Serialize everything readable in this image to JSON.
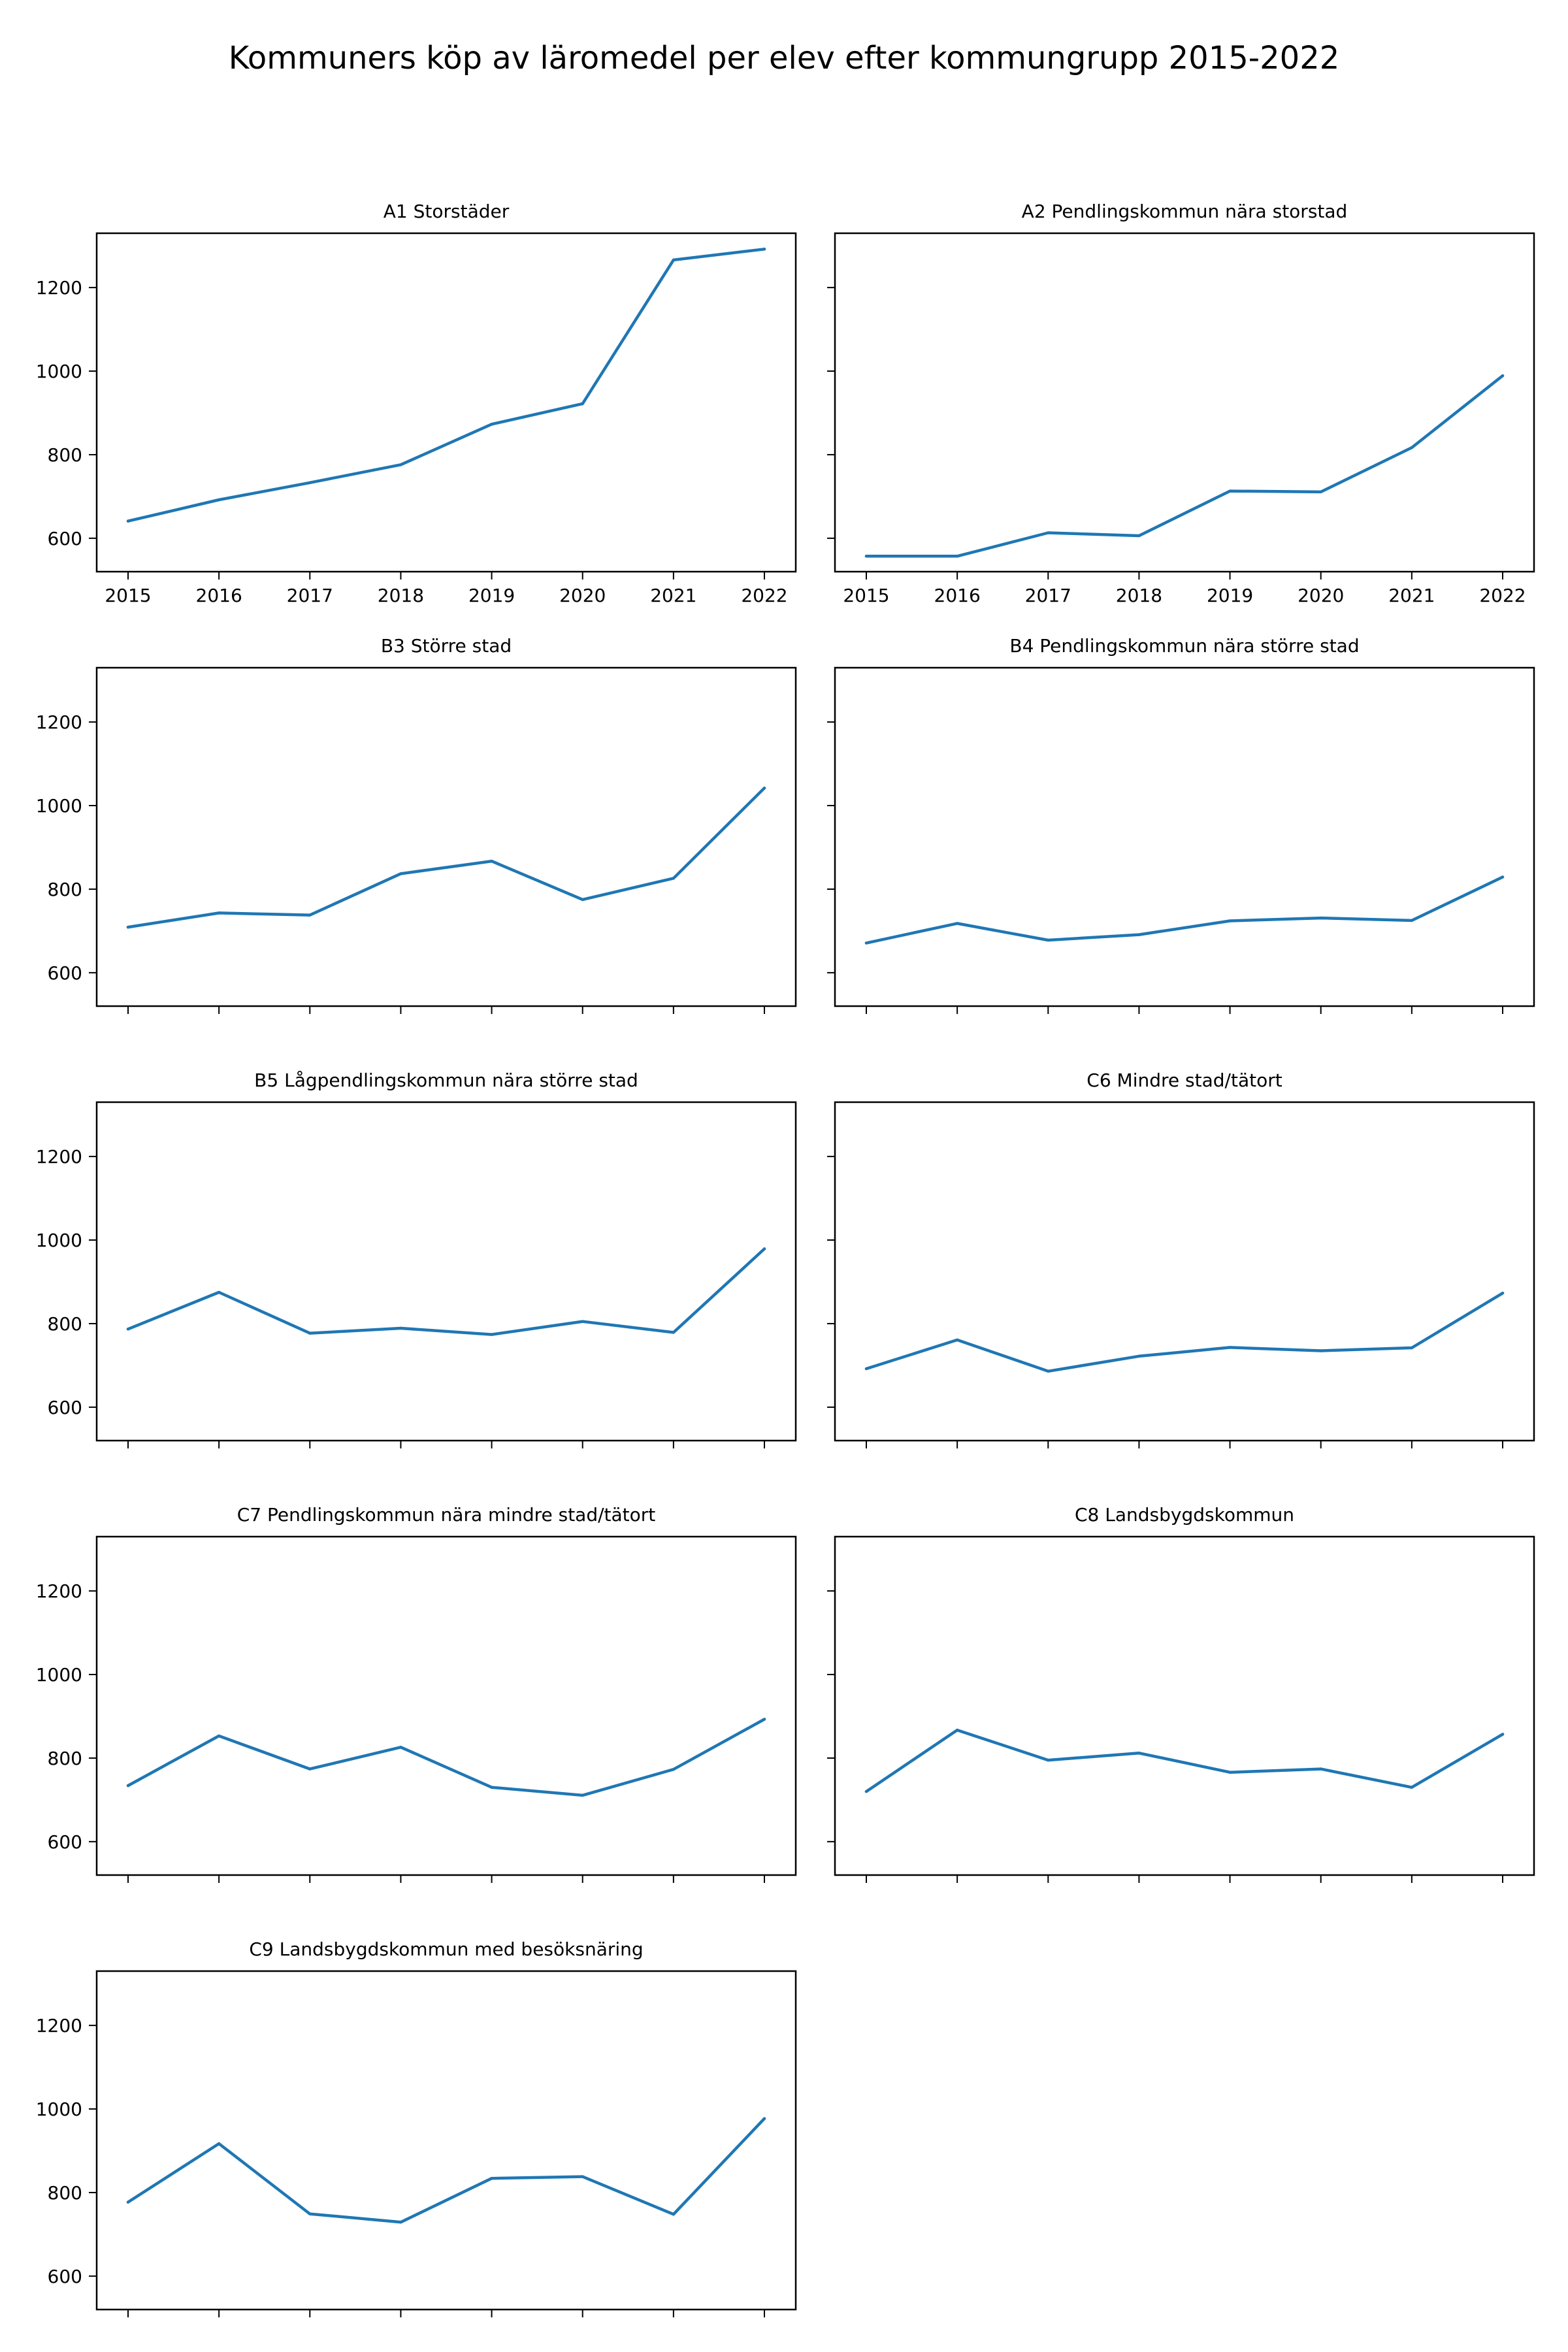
{
  "title": "Kommuners köp av läromedel per elev efter kommungrupp 2015-2022",
  "colors": {
    "line": "#1f77b4"
  },
  "chart_data": {
    "type": "line",
    "layout": "small-multiples",
    "x": [
      "2015",
      "2016",
      "2017",
      "2018",
      "2019",
      "2020",
      "2021",
      "2022"
    ],
    "ylim": [
      520,
      1330
    ],
    "yticks": [
      600,
      800,
      1000,
      1200
    ],
    "shared_y": true,
    "grid": false,
    "panels": [
      {
        "title": "A1 Storstäder",
        "values": [
          641,
          692,
          733,
          776,
          873,
          922,
          1266,
          1292
        ],
        "show_x_labels": true
      },
      {
        "title": "A2 Pendlingskommun nära storstad",
        "values": [
          557,
          557,
          613,
          606,
          713,
          711,
          817,
          989
        ],
        "show_x_labels": true
      },
      {
        "title": "B3 Större stad",
        "values": [
          709,
          743,
          738,
          837,
          867,
          775,
          826,
          1042
        ],
        "show_x_labels": false
      },
      {
        "title": "B4 Pendlingskommun nära större stad",
        "values": [
          671,
          718,
          678,
          691,
          724,
          731,
          725,
          829
        ],
        "show_x_labels": false
      },
      {
        "title": "B5 Lågpendlingskommun nära större stad",
        "values": [
          787,
          875,
          777,
          789,
          774,
          805,
          779,
          979
        ],
        "show_x_labels": false
      },
      {
        "title": "C6 Mindre stad/tätort",
        "values": [
          692,
          761,
          686,
          722,
          743,
          735,
          742,
          873
        ],
        "show_x_labels": false
      },
      {
        "title": "C7 Pendlingskommun nära mindre stad/tätort",
        "values": [
          734,
          853,
          774,
          826,
          730,
          711,
          773,
          893
        ],
        "show_x_labels": false
      },
      {
        "title": "C8 Landsbygdskommun",
        "values": [
          720,
          867,
          795,
          812,
          766,
          774,
          730,
          857
        ],
        "show_x_labels": false
      },
      {
        "title": "C9 Landsbygdskommun med besöksnäring",
        "values": [
          777,
          917,
          749,
          729,
          834,
          838,
          748,
          977
        ],
        "show_x_labels": false
      }
    ]
  }
}
